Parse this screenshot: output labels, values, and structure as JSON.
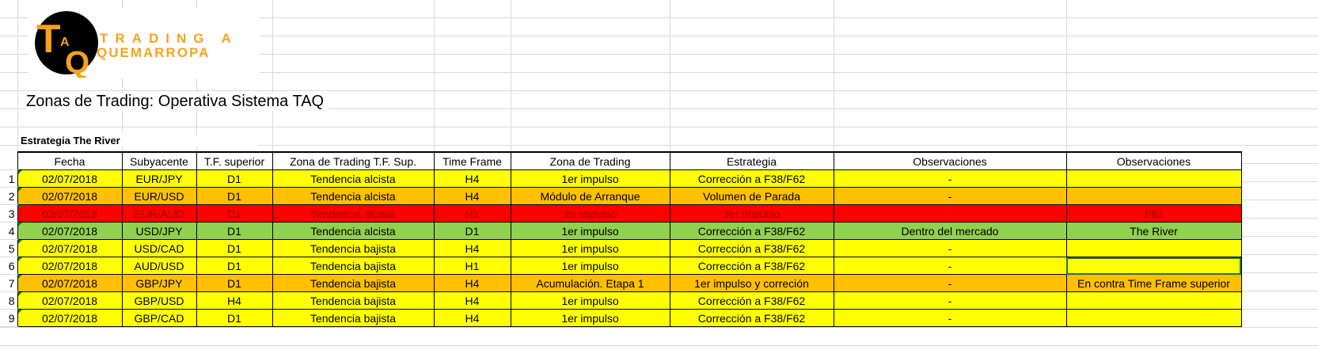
{
  "logo": {
    "letters": "TAQ",
    "line1": "TRADING A",
    "line2": "QUEMARROPA"
  },
  "title": "Zonas de Trading: Operativa Sistema TAQ",
  "subtitle": "Estrategia The River",
  "colors": {
    "yellow": "#FFFF00",
    "orange": "#FFC000",
    "red": "#FF0000",
    "green": "#92D050",
    "red_text": "#9C0006"
  },
  "headers": [
    "Fecha",
    "Subyacente",
    "T.F. superior",
    "Zona de Trading T.F. Sup.",
    "Time Frame",
    "Zona de Trading",
    "Estrategia",
    "Observaciones",
    "Observaciones"
  ],
  "rows": [
    {
      "n": "1",
      "color": "yellow",
      "cells": [
        "02/07/2018",
        "EUR/JPY",
        "D1",
        "Tendencia alcista",
        "H4",
        "1er impulso",
        "Corrección a F38/F62",
        "-",
        ""
      ]
    },
    {
      "n": "2",
      "color": "orange",
      "cells": [
        "02/07/2018",
        "EUR/USD",
        "D1",
        "Tendencia alcista",
        "H4",
        "Módulo de Arranque",
        "Volumen de Parada",
        "-",
        ""
      ]
    },
    {
      "n": "3",
      "color": "red",
      "cells": [
        "02/07/2018",
        "EUR/AUD",
        "D1",
        "Tendencia alcista",
        "H1",
        "2o impulso",
        "3er impulso",
        "-",
        "F62"
      ]
    },
    {
      "n": "4",
      "color": "green",
      "cells": [
        "02/07/2018",
        "USD/JPY",
        "D1",
        "Tendencia alcista",
        "D1",
        "1er impulso",
        "Corrección a F38/F62",
        "Dentro del mercado",
        "The River"
      ]
    },
    {
      "n": "5",
      "color": "yellow",
      "cells": [
        "02/07/2018",
        "USD/CAD",
        "D1",
        "Tendencia bajista",
        "H4",
        "1er impulso",
        "Corrección a F38/F62",
        "-",
        ""
      ]
    },
    {
      "n": "6",
      "color": "yellow",
      "cells": [
        "02/07/2018",
        "AUD/USD",
        "D1",
        "Tendencia bajista",
        "H1",
        "1er impulso",
        "Corrección a F38/F62",
        "-",
        ""
      ]
    },
    {
      "n": "7",
      "color": "orange",
      "cells": [
        "02/07/2018",
        "GBP/JPY",
        "D1",
        "Tendencia bajista",
        "H4",
        "Acumulación. Etapa 1",
        "1er impulso y correción",
        "-",
        "En contra Time Frame superior"
      ]
    },
    {
      "n": "8",
      "color": "yellow",
      "cells": [
        "02/07/2018",
        "GBP/USD",
        "H4",
        "Tendencia bajista",
        "H4",
        "1er impulso",
        "Corrección a F38/F62",
        "-",
        ""
      ]
    },
    {
      "n": "9",
      "color": "yellow",
      "cells": [
        "02/07/2018",
        "GBP/CAD",
        "D1",
        "Tendencia bajista",
        "H4",
        "1er impulso",
        "Corrección a F38/F62",
        "-",
        ""
      ]
    }
  ]
}
